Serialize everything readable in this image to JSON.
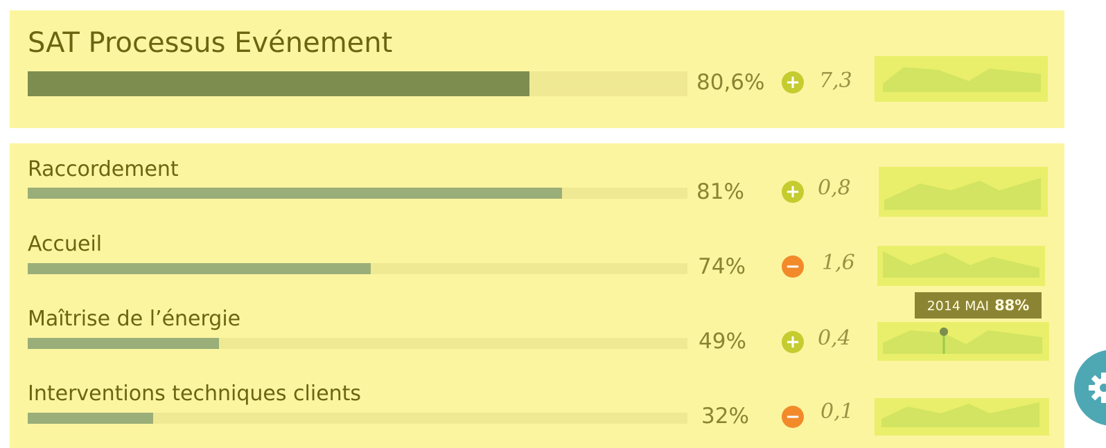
{
  "main": {
    "title": "SAT Processus Evénement",
    "percent_label": "80,6%",
    "percent_value": 80.6,
    "trend": "plus",
    "trend_symbol": "+",
    "delta": "7,3"
  },
  "rows": [
    {
      "label": "Raccordement",
      "percent_label": "81%",
      "percent_value": 81,
      "trend": "plus",
      "trend_symbol": "+",
      "delta": "0,8"
    },
    {
      "label": "Accueil",
      "percent_label": "74%",
      "percent_value": 74,
      "trend": "minus",
      "trend_symbol": "−",
      "delta": "1,6"
    },
    {
      "label": "Maîtrise de l’énergie",
      "percent_label": "49%",
      "percent_value": 49,
      "trend": "plus",
      "trend_symbol": "+",
      "delta": "0,4"
    },
    {
      "label": "Interventions techniques clients",
      "percent_label": "32%",
      "percent_value": 32,
      "trend": "minus",
      "trend_symbol": "−",
      "delta": "0,1"
    }
  ],
  "tooltip": {
    "period": "2014 MAI",
    "value": "88%"
  },
  "colors": {
    "panel": "#fbf5a0",
    "text": "#6b6410",
    "bar_main": "#7c8d4f",
    "bar_sub": "#9aae79",
    "plus": "#c4cc2f",
    "minus": "#f28a2a",
    "spark_bg": "#e9ef6a",
    "spark_fill": "#d2e461",
    "settings": "#4ea8b4"
  },
  "icons": {
    "settings": "gear-icon",
    "plus": "plus-circle-icon",
    "minus": "minus-circle-icon"
  }
}
